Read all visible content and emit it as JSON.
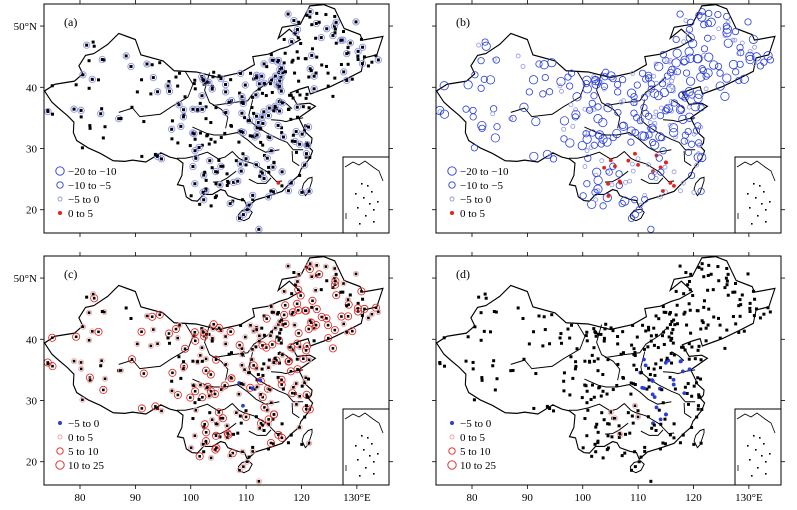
{
  "figure": {
    "x_ticks": [
      "80",
      "90",
      "100",
      "110",
      "120"
    ],
    "x_last_tick": "130°E",
    "y_ticks": [
      "20",
      "30",
      "40"
    ],
    "y_top_tick": "50°N"
  },
  "colors": {
    "blue": "#2a3fd6",
    "light_blue": "#8d95e8",
    "red": "#e0231c",
    "pink": "#f2a2a2",
    "dark": "#000000"
  },
  "panels": [
    {
      "id": "a",
      "label": "(a)",
      "legend": [
        {
          "text": "−20  to  −10",
          "symbol": "ring",
          "size": 4.2,
          "color": "#2a3fd6"
        },
        {
          "text": "−10  to  −5",
          "symbol": "ring",
          "size": 3.2,
          "color": "#2a3fd6"
        },
        {
          "text": "−5  to  0",
          "symbol": "ring",
          "size": 2.0,
          "color": "#8d95e8"
        },
        {
          "text": "0  to  5",
          "symbol": "dot",
          "size": 2.0,
          "color": "#e0231c"
        }
      ],
      "dominant": "dark",
      "accent": "none"
    },
    {
      "id": "b",
      "label": "(b)",
      "legend": [
        {
          "text": "−20  to  −10",
          "symbol": "ring",
          "size": 4.2,
          "color": "#2a3fd6"
        },
        {
          "text": "−10  to  −5",
          "symbol": "ring",
          "size": 3.2,
          "color": "#2a3fd6"
        },
        {
          "text": "−5  to  0",
          "symbol": "ring",
          "size": 2.0,
          "color": "#8d95e8"
        },
        {
          "text": "0  to  5",
          "symbol": "dot",
          "size": 2.0,
          "color": "#e0231c"
        }
      ],
      "dominant": "blue_rings",
      "accent": "red_dots"
    },
    {
      "id": "c",
      "label": "(c)",
      "legend": [
        {
          "text": "−5  to  0",
          "symbol": "dot",
          "size": 2.0,
          "color": "#2a3fd6"
        },
        {
          "text": "0  to  5",
          "symbol": "ring",
          "size": 2.0,
          "color": "#f2a2a2"
        },
        {
          "text": "5  to  10",
          "symbol": "ring",
          "size": 3.2,
          "color": "#e0231c"
        },
        {
          "text": "10  to  25",
          "symbol": "ring",
          "size": 4.2,
          "color": "#e0231c"
        }
      ],
      "dominant": "dark_pink",
      "accent": "few_blue"
    },
    {
      "id": "d",
      "label": "(d)",
      "legend": [
        {
          "text": "−5  to  0",
          "symbol": "dot",
          "size": 2.0,
          "color": "#2a3fd6"
        },
        {
          "text": "0  to  5",
          "symbol": "ring",
          "size": 2.0,
          "color": "#f2a2a2"
        },
        {
          "text": "5  to  10",
          "symbol": "ring",
          "size": 3.2,
          "color": "#e0231c"
        },
        {
          "text": "10  to  25",
          "symbol": "ring",
          "size": 4.2,
          "color": "#e0231c"
        }
      ],
      "dominant": "dark",
      "accent": "blue_dots"
    }
  ]
}
